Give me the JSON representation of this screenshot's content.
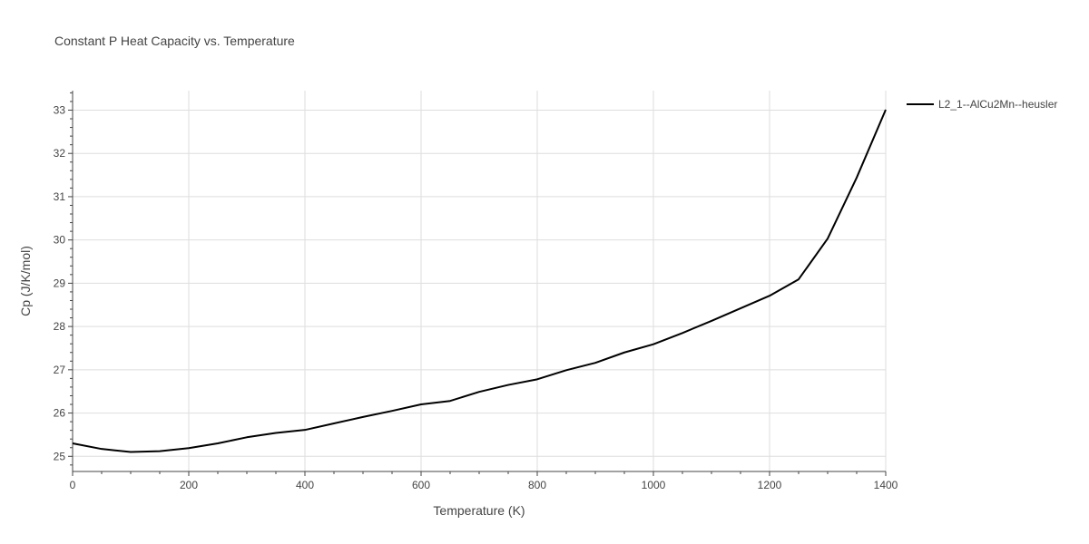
{
  "chart_data": {
    "type": "line",
    "title": "Constant P Heat Capacity vs. Temperature",
    "xlabel": "Temperature (K)",
    "ylabel": "Cp (J/K/mol)",
    "xlim": [
      0,
      1400
    ],
    "ylim": [
      24.65,
      33.45
    ],
    "xticks": [
      0,
      200,
      400,
      600,
      800,
      1000,
      1200,
      1400
    ],
    "yticks": [
      25,
      26,
      27,
      28,
      29,
      30,
      31,
      32,
      33
    ],
    "grid": true,
    "legend_position": "top-right",
    "series": [
      {
        "name": "L2_1--AlCu2Mn--heusler",
        "color": "#000000",
        "x": [
          0,
          50,
          100,
          150,
          200,
          250,
          300,
          350,
          400,
          450,
          500,
          550,
          600,
          650,
          700,
          750,
          800,
          850,
          900,
          950,
          1000,
          1050,
          1100,
          1150,
          1200,
          1250,
          1300,
          1350,
          1400
        ],
        "y": [
          25.3,
          25.17,
          25.1,
          25.12,
          25.19,
          25.3,
          25.44,
          25.54,
          25.61,
          25.76,
          25.91,
          26.05,
          26.2,
          26.28,
          26.49,
          26.65,
          26.78,
          26.99,
          27.16,
          27.4,
          27.59,
          27.85,
          28.13,
          28.42,
          28.71,
          29.09,
          30.03,
          31.44,
          33.01
        ]
      }
    ]
  }
}
